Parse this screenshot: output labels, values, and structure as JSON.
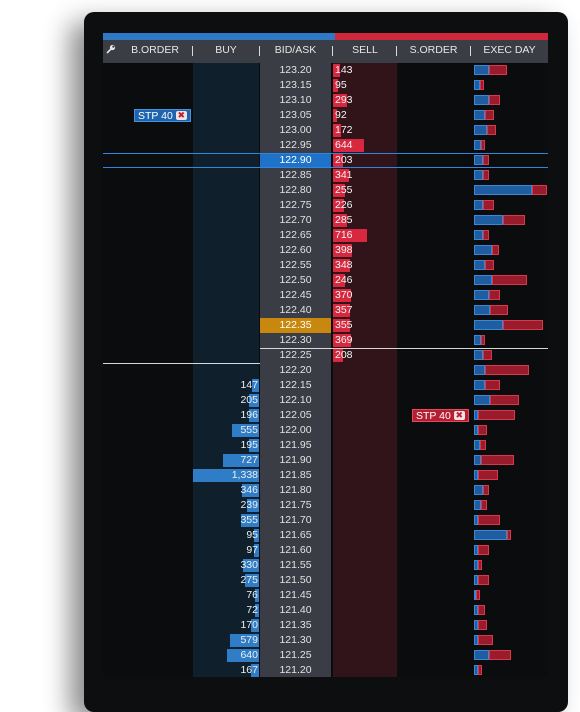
{
  "header": {
    "columns": [
      "B.ORDER",
      "BUY",
      "BID/ASK",
      "SELL",
      "S.ORDER",
      "EXEC DAY"
    ]
  },
  "icons": {
    "settings": "wrench-icon",
    "cancel": "x-icon"
  },
  "colors": {
    "buy": "#2f7cc7",
    "sell": "#d8283f",
    "last_trade": "#c8880e",
    "inside_market": "#1e73c8"
  },
  "orders": {
    "buy_stop": {
      "label": "STP 40",
      "price": "123.05"
    },
    "sell_stop": {
      "label": "STP 40",
      "price": "122.05"
    }
  },
  "ladder": [
    {
      "price": "123.20",
      "buy": "",
      "sell": "143",
      "eb": 0.2,
      "er": 0.25
    },
    {
      "price": "123.15",
      "buy": "",
      "sell": "95",
      "eb": 0.08,
      "er": 0.05
    },
    {
      "price": "123.10",
      "buy": "",
      "sell": "293",
      "eb": 0.2,
      "er": 0.15
    },
    {
      "price": "123.05",
      "buy": "",
      "sell": "92",
      "eb": 0.15,
      "er": 0.12
    },
    {
      "price": "123.00",
      "buy": "",
      "sell": "172",
      "eb": 0.18,
      "er": 0.12
    },
    {
      "price": "122.95",
      "buy": "",
      "sell": "644",
      "eb": 0.1,
      "er": 0.05
    },
    {
      "price": "122.90",
      "buy": "",
      "sell": "203",
      "eb": 0.13,
      "er": 0.08
    },
    {
      "price": "122.85",
      "buy": "",
      "sell": "341",
      "eb": 0.12,
      "er": 0.08
    },
    {
      "price": "122.80",
      "buy": "",
      "sell": "255",
      "eb": 0.8,
      "er": 0.22
    },
    {
      "price": "122.75",
      "buy": "",
      "sell": "226",
      "eb": 0.12,
      "er": 0.15
    },
    {
      "price": "122.70",
      "buy": "",
      "sell": "285",
      "eb": 0.4,
      "er": 0.3
    },
    {
      "price": "122.65",
      "buy": "",
      "sell": "716",
      "eb": 0.12,
      "er": 0.08
    },
    {
      "price": "122.60",
      "buy": "",
      "sell": "398",
      "eb": 0.25,
      "er": 0.1
    },
    {
      "price": "122.55",
      "buy": "",
      "sell": "348",
      "eb": 0.15,
      "er": 0.12
    },
    {
      "price": "122.50",
      "buy": "",
      "sell": "246",
      "eb": 0.25,
      "er": 0.48
    },
    {
      "price": "122.45",
      "buy": "",
      "sell": "370",
      "eb": 0.2,
      "er": 0.15
    },
    {
      "price": "122.40",
      "buy": "",
      "sell": "357",
      "eb": 0.22,
      "er": 0.25
    },
    {
      "price": "122.35",
      "buy": "",
      "sell": "355",
      "eb": 0.4,
      "er": 0.55
    },
    {
      "price": "122.30",
      "buy": "",
      "sell": "369",
      "eb": 0.1,
      "er": 0.05
    },
    {
      "price": "122.25",
      "buy": "",
      "sell": "208",
      "eb": 0.12,
      "er": 0.13
    },
    {
      "price": "122.20",
      "buy": "",
      "sell": "",
      "eb": 0.15,
      "er": 0.6
    },
    {
      "price": "122.15",
      "buy": "147",
      "sell": "",
      "eb": 0.15,
      "er": 0.2
    },
    {
      "price": "122.10",
      "buy": "205",
      "sell": "",
      "eb": 0.22,
      "er": 0.4
    },
    {
      "price": "122.05",
      "buy": "196",
      "sell": "",
      "eb": 0.05,
      "er": 0.5
    },
    {
      "price": "122.00",
      "buy": "555",
      "sell": "",
      "eb": 0.05,
      "er": 0.12
    },
    {
      "price": "121.95",
      "buy": "195",
      "sell": "",
      "eb": 0.08,
      "er": 0.08
    },
    {
      "price": "121.90",
      "buy": "727",
      "sell": "",
      "eb": 0.1,
      "er": 0.45
    },
    {
      "price": "121.85",
      "buy": "1,338",
      "sell": "",
      "eb": 0.05,
      "er": 0.28
    },
    {
      "price": "121.80",
      "buy": "346",
      "sell": "",
      "eb": 0.12,
      "er": 0.08
    },
    {
      "price": "121.75",
      "buy": "239",
      "sell": "",
      "eb": 0.1,
      "er": 0.08
    },
    {
      "price": "121.70",
      "buy": "355",
      "sell": "",
      "eb": 0.05,
      "er": 0.3
    },
    {
      "price": "121.65",
      "buy": "95",
      "sell": "",
      "eb": 0.45,
      "er": 0.05
    },
    {
      "price": "121.60",
      "buy": "97",
      "sell": "",
      "eb": 0.05,
      "er": 0.15
    },
    {
      "price": "121.55",
      "buy": "330",
      "sell": "",
      "eb": 0.05,
      "er": 0.05
    },
    {
      "price": "121.50",
      "buy": "275",
      "sell": "",
      "eb": 0.05,
      "er": 0.15
    },
    {
      "price": "121.45",
      "buy": "76",
      "sell": "",
      "eb": 0.03,
      "er": 0.05
    },
    {
      "price": "121.40",
      "buy": "72",
      "sell": "",
      "eb": 0.05,
      "er": 0.1
    },
    {
      "price": "121.35",
      "buy": "170",
      "sell": "",
      "eb": 0.05,
      "er": 0.12
    },
    {
      "price": "121.30",
      "buy": "579",
      "sell": "",
      "eb": 0.05,
      "er": 0.2
    },
    {
      "price": "121.25",
      "buy": "640",
      "sell": "",
      "eb": 0.2,
      "er": 0.3
    },
    {
      "price": "121.20",
      "buy": "167",
      "sell": "",
      "eb": 0.05,
      "er": 0.05
    }
  ],
  "selected_price": "122.90",
  "last_trade_price": "122.35"
}
